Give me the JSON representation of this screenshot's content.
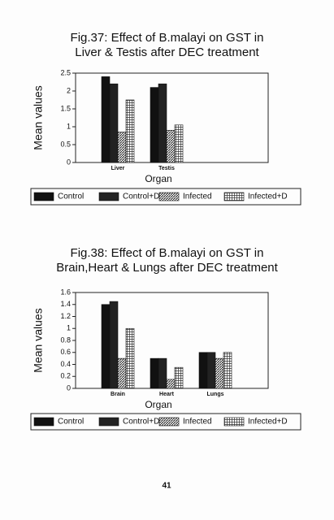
{
  "chart_data": [
    {
      "type": "bar",
      "title": "Fig.37: Effect of B.malayi on GST in Liver & Testis after DEC treatment",
      "y_label": "Mean values",
      "x_label": "Organ",
      "categories": [
        "Liver",
        "Testis"
      ],
      "series": [
        {
          "name": "Control",
          "color": "#111111",
          "pattern": "solid",
          "values": [
            2.4,
            2.1
          ]
        },
        {
          "name": "Control+D",
          "color": "#222222",
          "pattern": "solid",
          "values": [
            2.2,
            2.2
          ]
        },
        {
          "name": "Infected",
          "color": "#333333",
          "pattern": "hatch",
          "values": [
            0.85,
            0.9
          ]
        },
        {
          "name": "Infected+D",
          "color": "#333333",
          "pattern": "grid",
          "values": [
            1.75,
            1.05
          ]
        }
      ],
      "ylim": [
        0,
        2.5
      ],
      "yticks": [
        0,
        0.5,
        1,
        1.5,
        2,
        2.5
      ],
      "legend": "bottom"
    },
    {
      "type": "bar",
      "title": "Fig.38: Effect of B.malayi on GST in Brain,Heart & Lungs after DEC treatment",
      "y_label": "Mean values",
      "x_label": "Organ",
      "categories": [
        "Brain",
        "Heart",
        "Lungs"
      ],
      "series": [
        {
          "name": "Control",
          "color": "#111111",
          "pattern": "solid",
          "values": [
            1.4,
            0.5,
            0.6
          ]
        },
        {
          "name": "Control+D",
          "color": "#222222",
          "pattern": "solid",
          "values": [
            1.45,
            0.5,
            0.6
          ]
        },
        {
          "name": "Infected",
          "color": "#333333",
          "pattern": "hatch",
          "values": [
            0.5,
            0.15,
            0.5
          ]
        },
        {
          "name": "Infected+D",
          "color": "#333333",
          "pattern": "grid",
          "values": [
            1.0,
            0.35,
            0.6
          ]
        }
      ],
      "ylim": [
        0,
        1.6
      ],
      "yticks": [
        0,
        0.2,
        0.4,
        0.6,
        0.8,
        1,
        1.2,
        1.4,
        1.6
      ],
      "legend": "bottom"
    }
  ],
  "page_number": "41"
}
